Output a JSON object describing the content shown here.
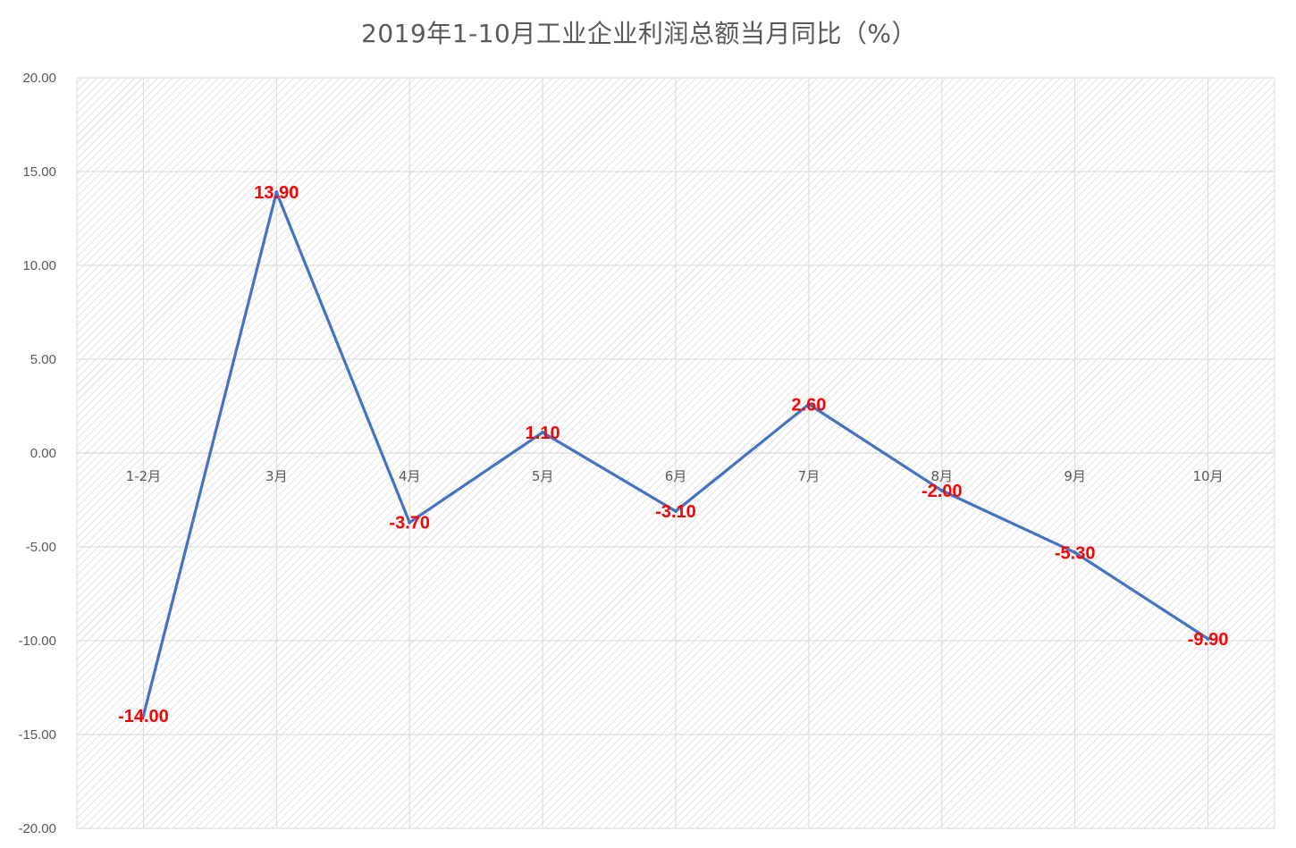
{
  "chart_data": {
    "type": "line",
    "title": "2019年1-10月工业企业利润总额当月同比（%）",
    "categories": [
      "1-2月",
      "3月",
      "4月",
      "5月",
      "6月",
      "7月",
      "8月",
      "9月",
      "10月"
    ],
    "values": [
      -14.0,
      13.9,
      -3.7,
      1.1,
      -3.1,
      2.6,
      -2.0,
      -5.3,
      -9.9
    ],
    "data_labels": [
      "-14.00",
      "13.90",
      "-3.70",
      "1.10",
      "-3.10",
      "2.60",
      "-2.00",
      "-5.30",
      "-9.90"
    ],
    "ylim": [
      -20,
      20
    ],
    "ytick_labels": [
      "20.00",
      "15.00",
      "10.00",
      "5.00",
      "0.00",
      "-5.00",
      "-10.00",
      "-15.00",
      "-20.00"
    ],
    "ytick_values": [
      20,
      15,
      10,
      5,
      0,
      -5,
      -10,
      -15,
      -20
    ],
    "grid": true,
    "legend": "none",
    "colors": {
      "line": "#4472c4",
      "data_label": "#ff0000",
      "grid": "#d9d9d9",
      "hatch": "#d0d0d0",
      "text": "#595959"
    }
  }
}
